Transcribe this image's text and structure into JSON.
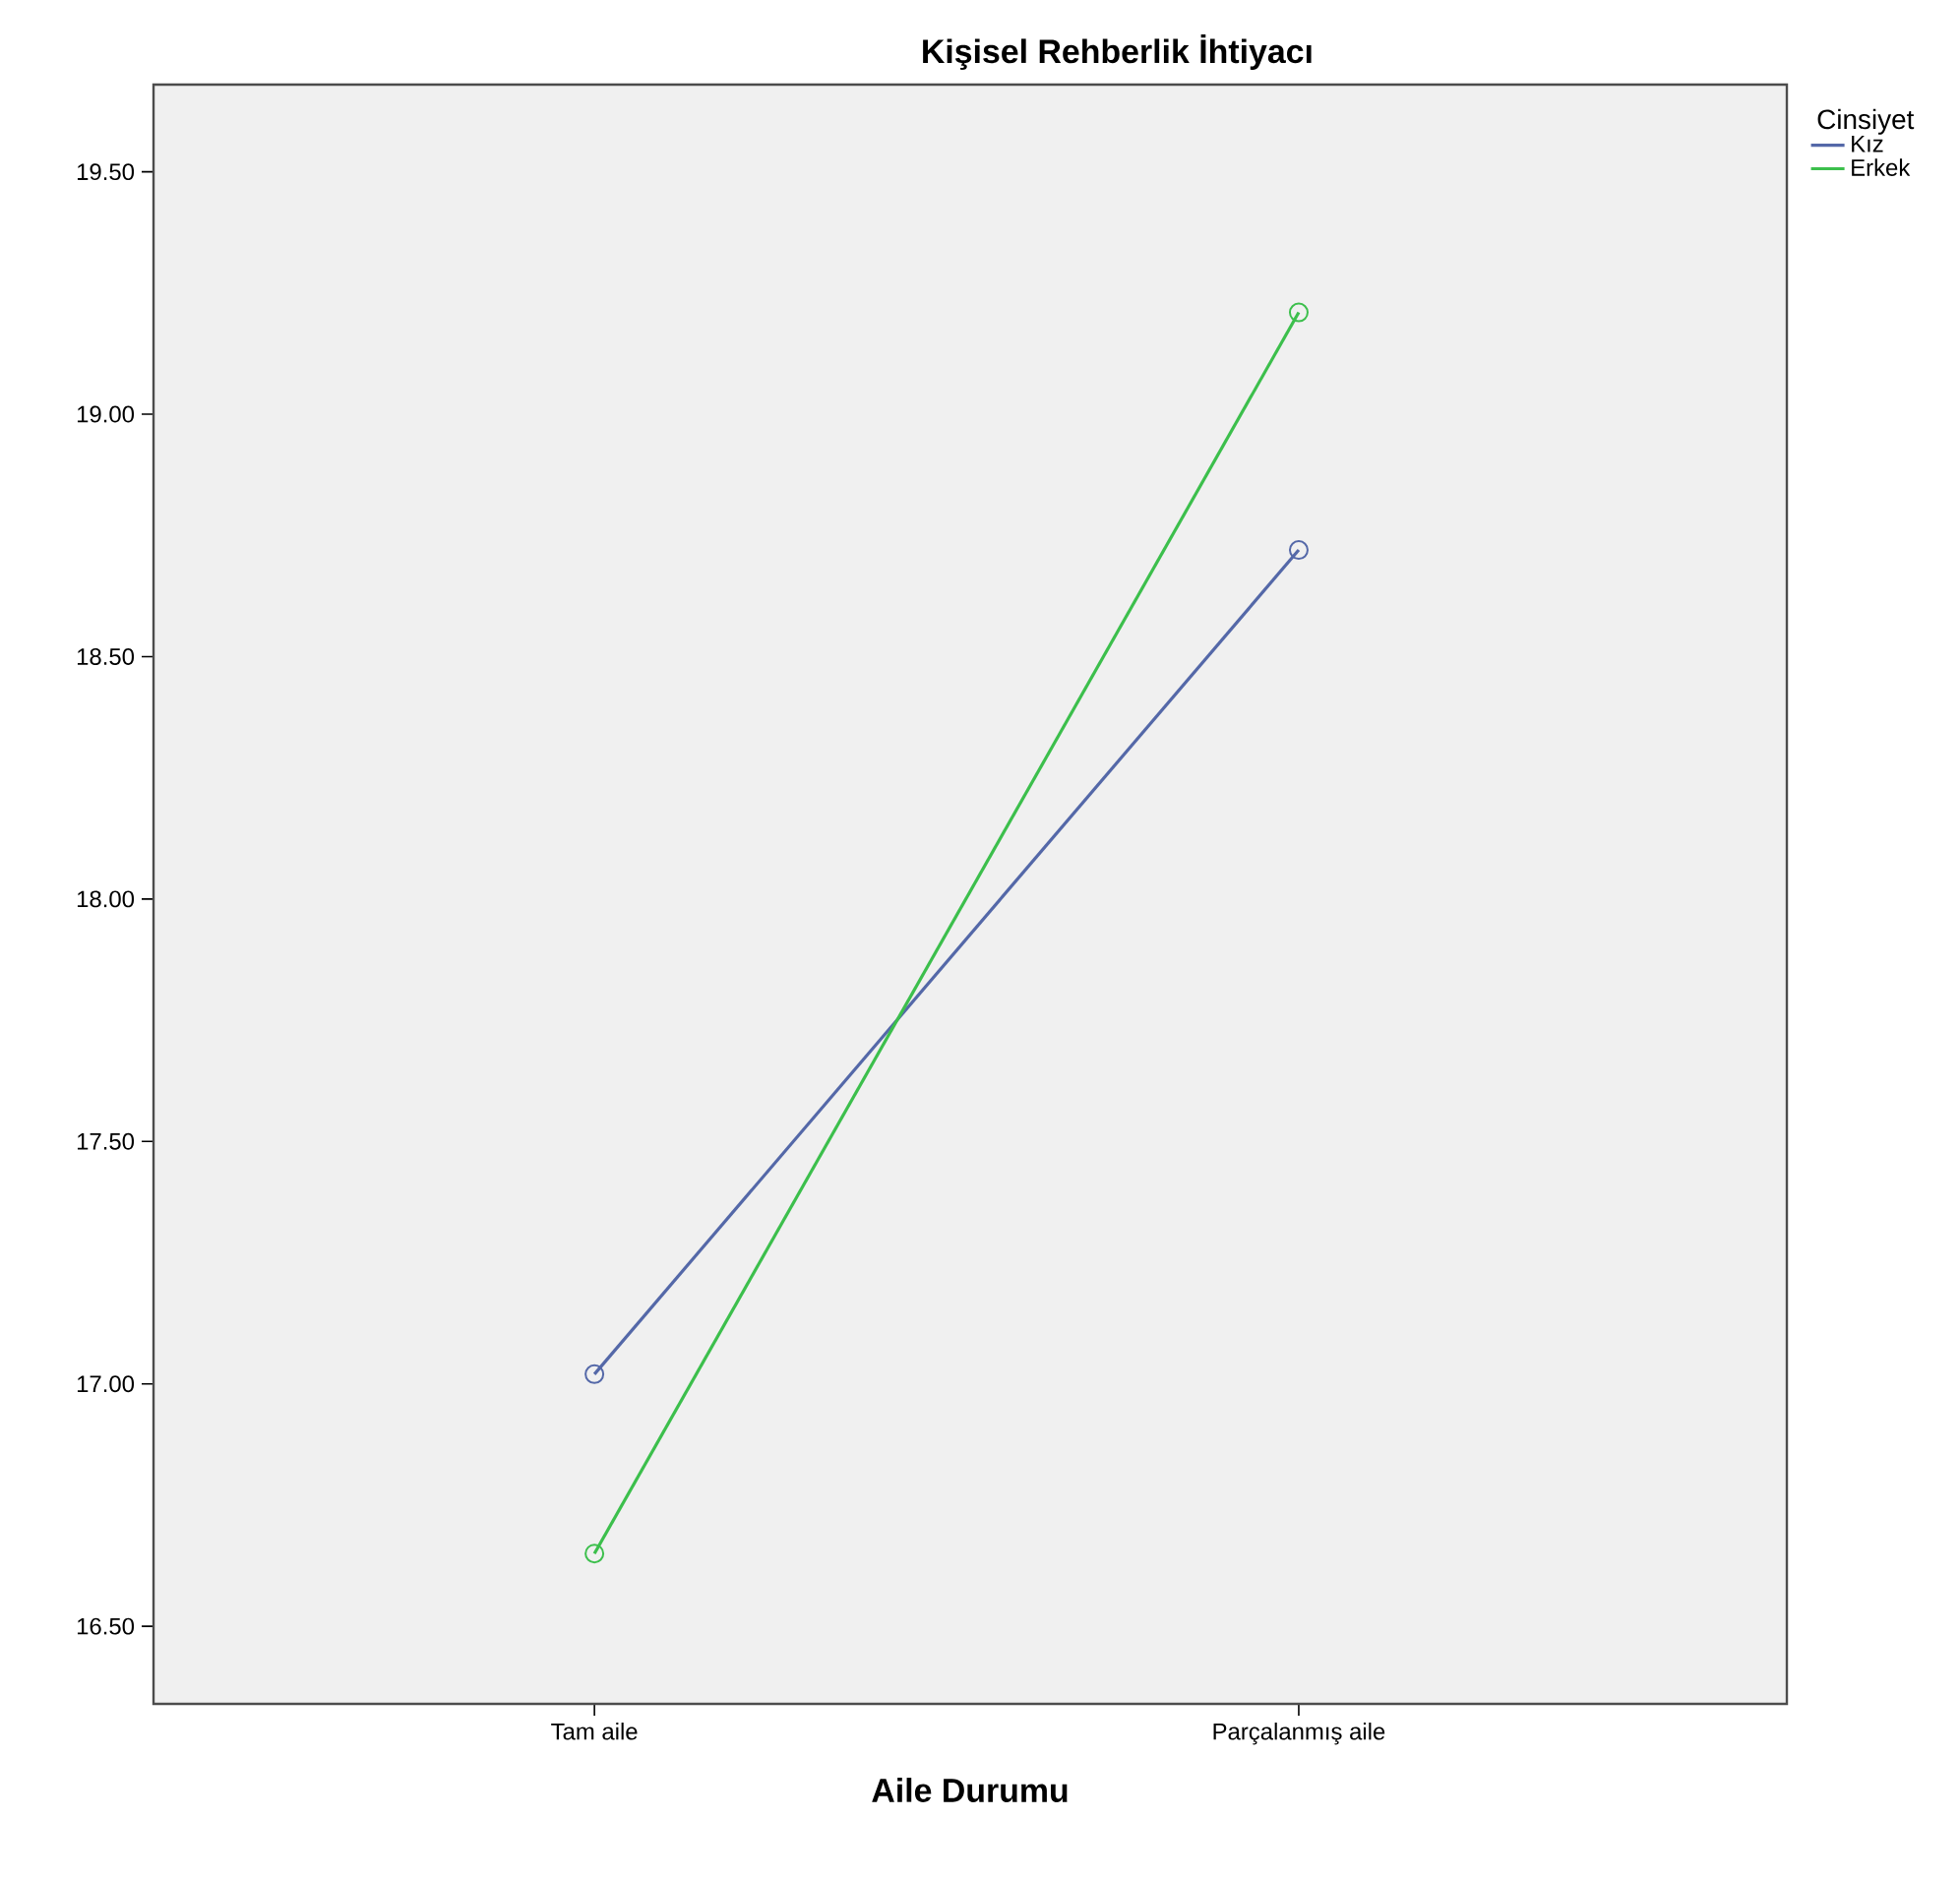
{
  "chart_data": {
    "type": "line",
    "title": "Kişisel Rehberlik İhtiyacı",
    "xlabel": "Aile Durumu",
    "legend_title": "Cinsiyet",
    "categories": [
      "Tam aile",
      "Parçalanmış aile"
    ],
    "series": [
      {
        "name": "Kız",
        "color": "#5468a8",
        "values": [
          17.02,
          18.72
        ]
      },
      {
        "name": "Erkek",
        "color": "#3cbf4c",
        "values": [
          16.65,
          19.21
        ]
      }
    ],
    "ylim": [
      16.34,
      19.68
    ],
    "yticks": [
      {
        "value": 16.5,
        "label": "16.50"
      },
      {
        "value": 17.0,
        "label": "17.00"
      },
      {
        "value": 17.5,
        "label": "17.50"
      },
      {
        "value": 18.0,
        "label": "18.00"
      },
      {
        "value": 18.5,
        "label": "18.50"
      },
      {
        "value": 19.0,
        "label": "19.00"
      },
      {
        "value": 19.5,
        "label": "19.50"
      }
    ],
    "grid": false,
    "legend": "top right",
    "marker": "circle",
    "line_style": "solid"
  }
}
